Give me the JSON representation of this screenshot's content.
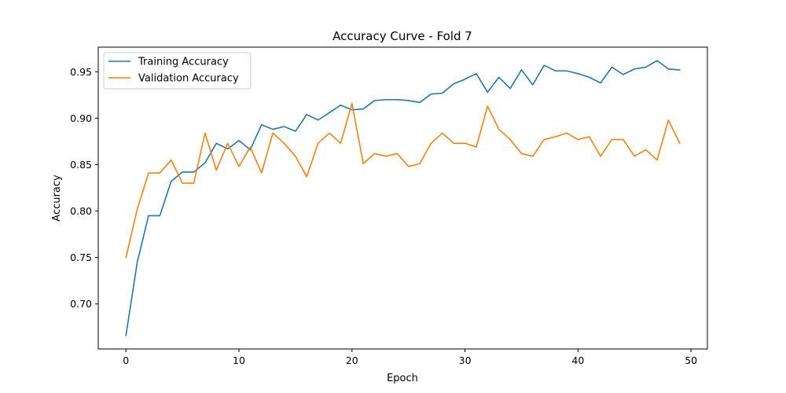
{
  "chart_data": {
    "type": "line",
    "title": "Accuracy Curve - Fold 7",
    "xlabel": "Epoch",
    "ylabel": "Accuracy",
    "xlim": [
      -2.45,
      51.45
    ],
    "ylim": [
      0.6515,
      0.9765
    ],
    "xticks": [
      0,
      10,
      20,
      30,
      40,
      50
    ],
    "yticks": [
      0.7,
      0.75,
      0.8,
      0.85,
      0.9,
      0.95
    ],
    "ytick_labels": [
      "0.70",
      "0.75",
      "0.80",
      "0.85",
      "0.90",
      "0.95"
    ],
    "grid": false,
    "legend": "top-left",
    "x": [
      0,
      1,
      2,
      3,
      4,
      5,
      6,
      7,
      8,
      9,
      10,
      11,
      12,
      13,
      14,
      15,
      16,
      17,
      18,
      19,
      20,
      21,
      22,
      23,
      24,
      25,
      26,
      27,
      28,
      29,
      30,
      31,
      32,
      33,
      34,
      35,
      36,
      37,
      38,
      39,
      40,
      41,
      42,
      43,
      44,
      45,
      46,
      47,
      48,
      49
    ],
    "series": [
      {
        "name": "Training Accuracy",
        "color": "#1f77b4",
        "values": [
          0.666,
          0.745,
          0.795,
          0.795,
          0.832,
          0.842,
          0.842,
          0.852,
          0.873,
          0.867,
          0.876,
          0.866,
          0.893,
          0.888,
          0.891,
          0.886,
          0.904,
          0.898,
          0.906,
          0.914,
          0.909,
          0.91,
          0.919,
          0.92,
          0.92,
          0.919,
          0.917,
          0.926,
          0.927,
          0.937,
          0.942,
          0.948,
          0.928,
          0.944,
          0.932,
          0.952,
          0.936,
          0.957,
          0.951,
          0.951,
          0.948,
          0.944,
          0.938,
          0.955,
          0.947,
          0.953,
          0.955,
          0.962,
          0.953,
          0.952
        ]
      },
      {
        "name": "Validation Accuracy",
        "color": "#ff7f0e",
        "values": [
          0.75,
          0.802,
          0.841,
          0.841,
          0.855,
          0.83,
          0.83,
          0.884,
          0.844,
          0.873,
          0.848,
          0.869,
          0.841,
          0.884,
          0.873,
          0.859,
          0.837,
          0.873,
          0.884,
          0.873,
          0.916,
          0.851,
          0.862,
          0.859,
          0.862,
          0.848,
          0.851,
          0.873,
          0.884,
          0.873,
          0.873,
          0.869,
          0.913,
          0.888,
          0.877,
          0.862,
          0.859,
          0.877,
          0.88,
          0.884,
          0.877,
          0.88,
          0.859,
          0.877,
          0.877,
          0.859,
          0.866,
          0.855,
          0.898,
          0.873
        ]
      }
    ]
  }
}
